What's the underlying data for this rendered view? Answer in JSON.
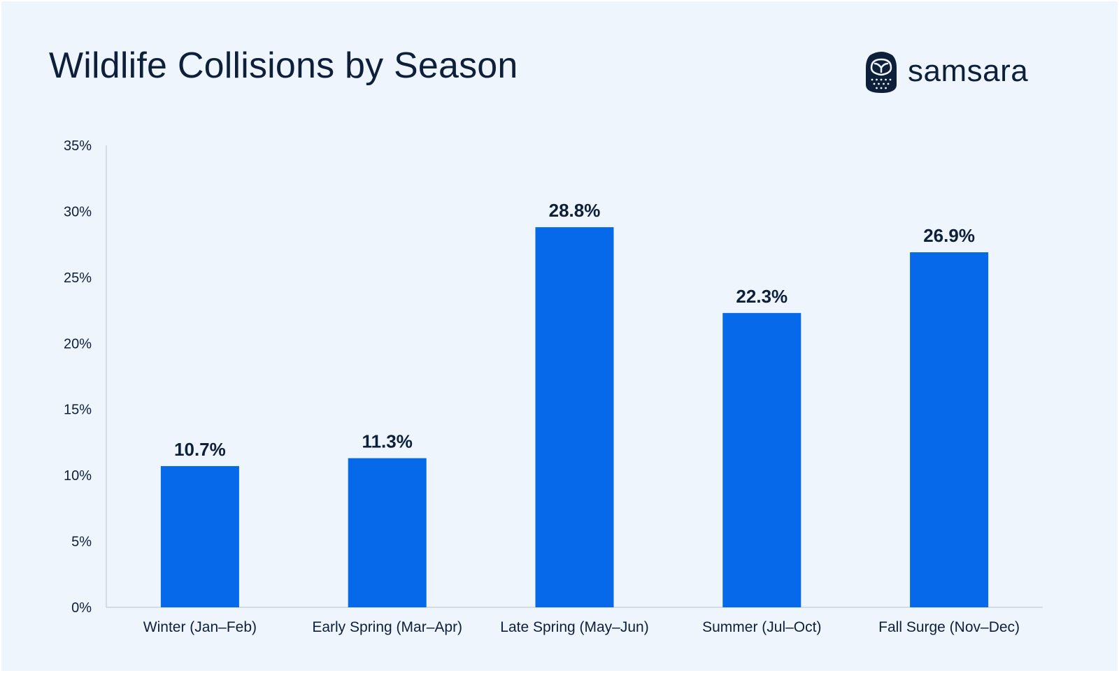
{
  "brand": {
    "name": "samsara",
    "icon": "owl-logo-icon"
  },
  "colors": {
    "background": "#eef5fd",
    "bar": "#0669e9",
    "text": "#0e1f3a",
    "axis": "#c9d3df"
  },
  "chart_data": {
    "type": "bar",
    "title": "Wildlife Collisions by Season",
    "xlabel": "",
    "ylabel": "",
    "categories": [
      "Winter (Jan–Feb)",
      "Early Spring (Mar–Apr)",
      "Late Spring (May–Jun)",
      "Summer (Jul–Oct)",
      "Fall Surge (Nov–Dec)"
    ],
    "values": [
      10.7,
      11.3,
      28.8,
      22.3,
      26.9
    ],
    "data_labels": [
      "10.7%",
      "11.3%",
      "28.8%",
      "22.3%",
      "26.9%"
    ],
    "ylim": [
      0,
      35
    ],
    "yticks": [
      0,
      5,
      10,
      15,
      20,
      25,
      30,
      35
    ],
    "ytick_labels": [
      "0%",
      "5%",
      "10%",
      "15%",
      "20%",
      "25%",
      "30%",
      "35%"
    ],
    "grid": false,
    "legend": "none"
  }
}
